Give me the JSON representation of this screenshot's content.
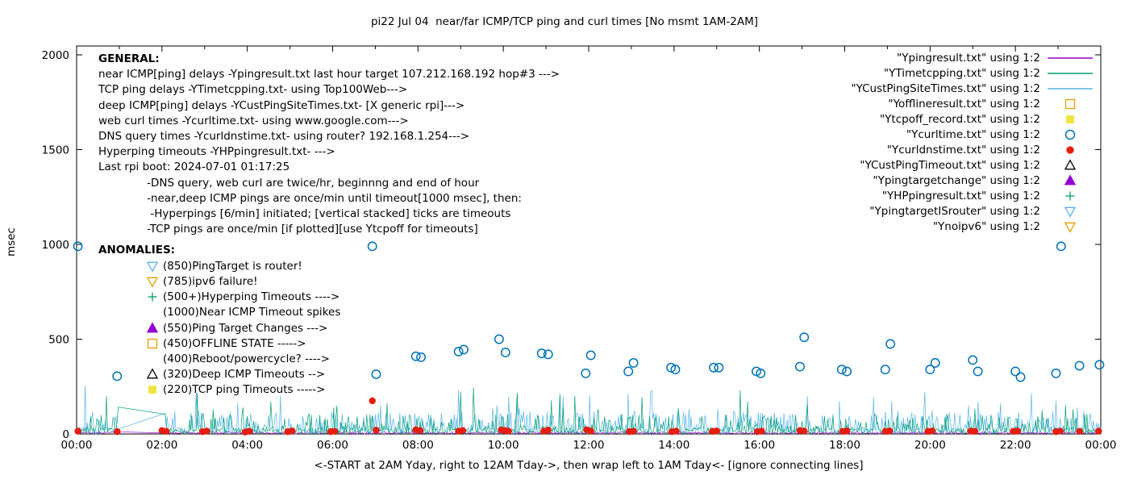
{
  "title": "pi22 Jul 04  near/far ICMP/TCP ping and curl times [No msmt 1AM-2AM]",
  "xlabel": "<-START at 2AM Yday, right to 12AM Tday->, then wrap left to 1AM Tday<- [ignore connecting lines]",
  "ylabel": "msec",
  "general": {
    "heading": "GENERAL:",
    "lines": [
      "near ICMP[ping] delays -Ypingresult.txt last hour target 107.212.168.192 hop#3 --->",
      "TCP ping delays -YTimetcpping.txt- using Top100Web--->",
      "deep ICMP[ping] delays -YCustPingSiteTimes.txt- [X generic rpi]--->",
      "web curl times -Ycurltime.txt- using www.google.com--->",
      "DNS query times -Ycurldnstime.txt- using router? 192.168.1.254--->",
      "Hyperping timeouts -YHPpingresult.txt- --->",
      "Last rpi boot: 2024-07-01 01:17:25",
      "              -DNS query, web curl are twice/hr, beginnng and end of hour",
      "              -near,deep ICMP pings are once/min until timeout[1000 msec], then:",
      "               -Hyperpings [6/min] initiated; [vertical stacked] ticks are timeouts",
      "              -TCP pings are once/min [if plotted][use Ytcpoff for timeouts]"
    ]
  },
  "anomalies": {
    "heading": "ANOMALIES:",
    "items": [
      {
        "marker": "triangle-down-open",
        "color": "#56b4e9",
        "label": "(850)PingTarget is router!"
      },
      {
        "marker": "triangle-down-open",
        "color": "#e69f00",
        "label": "(785)ipv6 failure!"
      },
      {
        "marker": "plus",
        "color": "#009e73",
        "label": "(500+)Hyperping Timeouts ---->"
      },
      {
        "marker": "none",
        "color": "",
        "label": "(1000)Near ICMP Timeout spikes"
      },
      {
        "marker": "triangle-up-filled",
        "color": "#9400d3",
        "label": "(550)Ping Target Changes --->"
      },
      {
        "marker": "square-open",
        "color": "#e69f00",
        "label": "(450)OFFLINE STATE ----->"
      },
      {
        "marker": "none",
        "color": "",
        "label": "(400)Reboot/powercycle? ---->"
      },
      {
        "marker": "triangle-up-open",
        "color": "#000000",
        "label": "(320)Deep ICMP Timeouts -->"
      },
      {
        "marker": "square-filled",
        "color": "#f0e442",
        "label": "(220)TCP ping Timeouts ----->"
      }
    ]
  },
  "legend": [
    {
      "label": "\"Ypingresult.txt\" using 1:2",
      "sample": "line",
      "color": "#9400d3"
    },
    {
      "label": "\"YTimetcpping.txt\" using 1:2",
      "sample": "line",
      "color": "#009e73"
    },
    {
      "label": "\"YCustPingSiteTimes.txt\" using 1:2",
      "sample": "line",
      "color": "#56b4e9"
    },
    {
      "label": "\"Yofflineresult.txt\" using 1:2",
      "sample": "square-open",
      "color": "#e69f00"
    },
    {
      "label": "\"Ytcpoff_record.txt\" using 1:2",
      "sample": "square-filled",
      "color": "#f0e442"
    },
    {
      "label": "\"Ycurltime.txt\" using 1:2",
      "sample": "circle-open",
      "color": "#0072b2"
    },
    {
      "label": "\"Ycurldnstime.txt\" using 1:2",
      "sample": "circle-filled",
      "color": "#e51e10"
    },
    {
      "label": "\"YCustPingTimeout.txt\" using 1:2",
      "sample": "triangle-up-open",
      "color": "#000000"
    },
    {
      "label": "\"Ypingtargetchange\" using 1:2",
      "sample": "triangle-up-filled",
      "color": "#9400d3"
    },
    {
      "label": "\"YHPpingresult.txt\" using 1:2",
      "sample": "plus",
      "color": "#009e73"
    },
    {
      "label": "\"YpingtargetISrouter\" using 1:2",
      "sample": "triangle-down-open",
      "color": "#56b4e9"
    },
    {
      "label": "\"Ynoipv6\" using 1:2",
      "sample": "triangle-down-open",
      "color": "#e69f00"
    }
  ],
  "chart_data": {
    "type": "line",
    "note": "x axis is time-of-day in hours (00:00 to 24:00), y axis msec; measurement gap 01:00-02:00",
    "x_axis": {
      "range_hours": [
        0,
        24
      ],
      "major_tick_step_hours": 2,
      "minor_tick_step_hours": 1,
      "tick_labels": [
        "00:00",
        "02:00",
        "04:00",
        "06:00",
        "08:00",
        "10:00",
        "12:00",
        "14:00",
        "16:00",
        "18:00",
        "20:00",
        "22:00",
        "00:00"
      ]
    },
    "y_axis": {
      "ylim": [
        0,
        2000
      ],
      "ticks": [
        0,
        500,
        1000,
        1500,
        2000
      ]
    },
    "gap_hours": [
      1.0,
      2.05
    ],
    "series": [
      {
        "name": "Ypingresult",
        "style": "line",
        "color": "#9400d3",
        "noise": {
          "seed": 303,
          "p_base": 1.0,
          "base_max": 12,
          "p_mid": 1.0,
          "mid_max": 0,
          "tall_min": 0,
          "tall_spread": 0
        },
        "spikes": []
      },
      {
        "name": "YCustPingSiteTimes",
        "style": "line",
        "color": "#56b4e9",
        "noise": {
          "seed": 101,
          "p_base": 0.65,
          "base_max": 38,
          "p_mid": 0.965,
          "mid_max": 85,
          "tall_min": 125,
          "tall_spread": 120
        },
        "spikes": [
          [
            0.2,
            255
          ],
          [
            9.85,
            150
          ],
          [
            20.9,
            150
          ],
          [
            23.6,
            120
          ]
        ]
      },
      {
        "name": "YTimetcpping",
        "style": "line",
        "color": "#009e73",
        "noise": {
          "seed": 202,
          "p_base": 0.72,
          "base_max": 32,
          "p_mid": 0.97,
          "mid_max": 75,
          "tall_min": 110,
          "tall_spread": 115
        },
        "spikes": [
          [
            6.1,
            150
          ],
          [
            9.3,
            245
          ],
          [
            15.55,
            230
          ]
        ]
      },
      {
        "name": "Ycurldnstime",
        "style": "circle-filled",
        "color": "#e51e10",
        "points": [
          [
            0.03,
            15
          ],
          [
            0.95,
            12
          ],
          [
            2.0,
            18
          ],
          [
            2.1,
            14
          ],
          [
            2.95,
            12
          ],
          [
            3.05,
            15
          ],
          [
            3.95,
            10
          ],
          [
            4.05,
            14
          ],
          [
            4.95,
            12
          ],
          [
            5.05,
            16
          ],
          [
            5.95,
            12
          ],
          [
            6.05,
            14
          ],
          [
            6.93,
            175
          ],
          [
            7.02,
            20
          ],
          [
            7.95,
            22
          ],
          [
            8.05,
            18
          ],
          [
            8.95,
            15
          ],
          [
            9.05,
            18
          ],
          [
            9.95,
            22
          ],
          [
            10.05,
            18
          ],
          [
            10.12,
            15
          ],
          [
            10.95,
            15
          ],
          [
            11.05,
            20
          ],
          [
            11.95,
            22
          ],
          [
            12.05,
            16
          ],
          [
            12.95,
            12
          ],
          [
            13.05,
            14
          ],
          [
            13.95,
            12
          ],
          [
            14.05,
            15
          ],
          [
            14.9,
            14
          ],
          [
            15.0,
            16
          ],
          [
            15.95,
            12
          ],
          [
            16.05,
            15
          ],
          [
            16.95,
            18
          ],
          [
            17.05,
            15
          ],
          [
            17.95,
            14
          ],
          [
            18.05,
            16
          ],
          [
            18.95,
            14
          ],
          [
            19.05,
            16
          ],
          [
            19.95,
            14
          ],
          [
            20.05,
            16
          ],
          [
            20.95,
            15
          ],
          [
            21.05,
            14
          ],
          [
            21.95,
            14
          ],
          [
            22.05,
            15
          ],
          [
            22.95,
            12
          ],
          [
            23.05,
            15
          ],
          [
            23.5,
            14
          ],
          [
            23.95,
            15
          ]
        ]
      },
      {
        "name": "Ycurltime",
        "style": "circle-open",
        "color": "#0072b2",
        "points": [
          [
            0.03,
            990
          ],
          [
            0.95,
            305
          ],
          [
            6.93,
            990
          ],
          [
            7.02,
            315
          ],
          [
            7.95,
            410
          ],
          [
            8.07,
            405
          ],
          [
            8.95,
            435
          ],
          [
            9.07,
            445
          ],
          [
            9.9,
            500
          ],
          [
            10.05,
            430
          ],
          [
            10.9,
            425
          ],
          [
            11.05,
            420
          ],
          [
            11.93,
            320
          ],
          [
            12.05,
            415
          ],
          [
            12.93,
            330
          ],
          [
            13.05,
            375
          ],
          [
            13.93,
            350
          ],
          [
            14.03,
            340
          ],
          [
            14.93,
            350
          ],
          [
            15.05,
            350
          ],
          [
            15.93,
            330
          ],
          [
            16.03,
            320
          ],
          [
            16.95,
            355
          ],
          [
            17.05,
            510
          ],
          [
            17.93,
            340
          ],
          [
            18.05,
            330
          ],
          [
            18.95,
            340
          ],
          [
            19.07,
            475
          ],
          [
            20.0,
            340
          ],
          [
            20.12,
            375
          ],
          [
            21.0,
            390
          ],
          [
            21.12,
            330
          ],
          [
            22.0,
            330
          ],
          [
            22.12,
            300
          ],
          [
            22.95,
            320
          ],
          [
            23.07,
            990
          ],
          [
            23.5,
            360
          ],
          [
            23.97,
            365
          ]
        ]
      }
    ]
  }
}
